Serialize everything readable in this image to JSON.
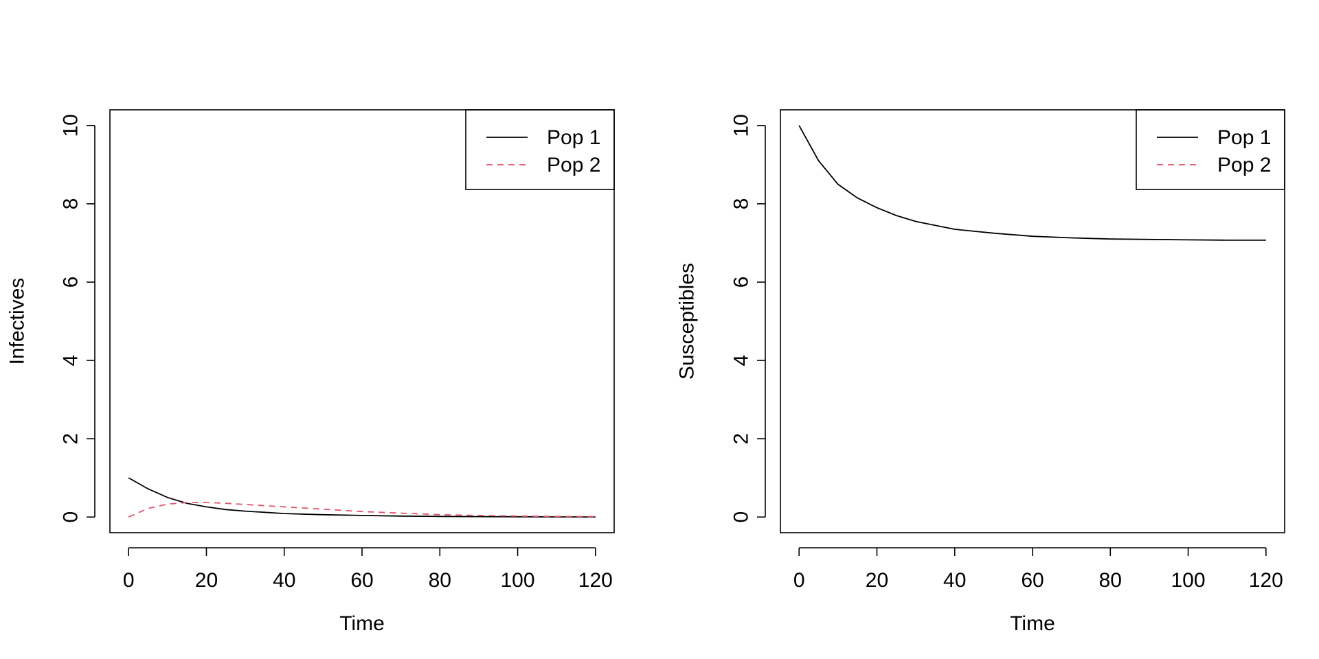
{
  "colors": {
    "pop1": "#000000",
    "pop2": "#DF536B"
  },
  "chart_data": [
    {
      "type": "line",
      "title": "",
      "xlabel": "Time",
      "ylabel": "Infectives",
      "xlim": [
        0,
        120
      ],
      "ylim": [
        0,
        10
      ],
      "xticks": [
        0,
        20,
        40,
        60,
        80,
        100,
        120
      ],
      "yticks": [
        0,
        2,
        4,
        6,
        8,
        10
      ],
      "grid": false,
      "legend_position": "top-right",
      "series": [
        {
          "name": "Pop 1",
          "color": "#000000",
          "dash": "solid",
          "x": [
            0,
            5,
            10,
            15,
            20,
            25,
            30,
            40,
            50,
            60,
            70,
            80,
            90,
            100,
            110,
            120
          ],
          "y": [
            1.0,
            0.72,
            0.5,
            0.35,
            0.26,
            0.19,
            0.15,
            0.09,
            0.06,
            0.04,
            0.025,
            0.015,
            0.01,
            0.006,
            0.004,
            0.002
          ]
        },
        {
          "name": "Pop 2",
          "color": "#DF536B",
          "dash": "dashed",
          "x": [
            0,
            5,
            10,
            15,
            20,
            25,
            30,
            40,
            50,
            60,
            70,
            80,
            90,
            100,
            110,
            120
          ],
          "y": [
            0.0,
            0.22,
            0.33,
            0.37,
            0.37,
            0.35,
            0.32,
            0.26,
            0.2,
            0.14,
            0.1,
            0.06,
            0.04,
            0.025,
            0.015,
            0.01
          ]
        }
      ]
    },
    {
      "type": "line",
      "title": "",
      "xlabel": "Time",
      "ylabel": "Susceptibles",
      "xlim": [
        0,
        120
      ],
      "ylim": [
        0,
        10
      ],
      "xticks": [
        0,
        20,
        40,
        60,
        80,
        100,
        120
      ],
      "yticks": [
        0,
        2,
        4,
        6,
        8,
        10
      ],
      "grid": false,
      "legend_position": "top-right",
      "series": [
        {
          "name": "Pop 1",
          "color": "#000000",
          "dash": "solid",
          "x": [
            0,
            5,
            10,
            15,
            20,
            25,
            30,
            40,
            50,
            60,
            70,
            80,
            90,
            100,
            110,
            120
          ],
          "y": [
            10.0,
            9.1,
            8.5,
            8.15,
            7.9,
            7.7,
            7.55,
            7.35,
            7.25,
            7.17,
            7.13,
            7.1,
            7.09,
            7.08,
            7.07,
            7.07
          ]
        },
        {
          "name": "Pop 2",
          "color": "#DF536B",
          "dash": "dashed",
          "x": [],
          "y": []
        }
      ]
    }
  ]
}
